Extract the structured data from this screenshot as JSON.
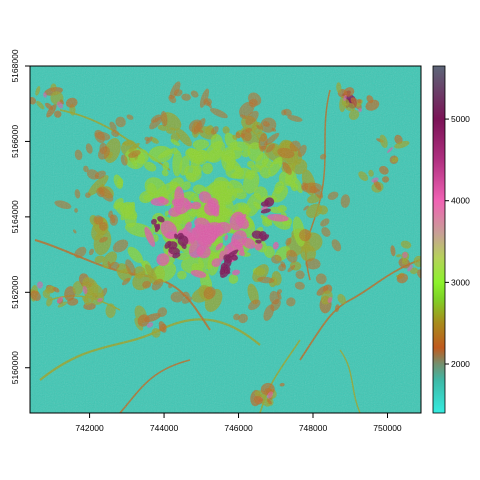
{
  "map": {
    "x_ticks": [
      {
        "value": 742000,
        "label": "742000"
      },
      {
        "value": 744000,
        "label": "744000"
      },
      {
        "value": 746000,
        "label": "746000"
      },
      {
        "value": 748000,
        "label": "748000"
      },
      {
        "value": 750000,
        "label": "750000"
      }
    ],
    "y_ticks": [
      {
        "value": 5160000,
        "label": "5160000"
      },
      {
        "value": 5162000,
        "label": "5162000"
      },
      {
        "value": 5164000,
        "label": "5164000"
      },
      {
        "value": 5166000,
        "label": "5166000"
      },
      {
        "value": 5168000,
        "label": "5168000"
      }
    ],
    "xlim": [
      740400,
      750900
    ],
    "ylim": [
      5158800,
      5168000
    ],
    "colors": {
      "background": "#3ec7b4",
      "ridge": "#8cd42c",
      "slope": "#9aa226",
      "low_brown": "#b96a22",
      "pink": "#dc5aa6",
      "purple": "#7a1356",
      "frame": "#000000"
    }
  },
  "legend": {
    "title": "",
    "range": [
      1400,
      5650
    ],
    "ticks": [
      {
        "value": 2000,
        "label": "2000"
      },
      {
        "value": 3000,
        "label": "3000"
      },
      {
        "value": 4000,
        "label": "4000"
      },
      {
        "value": 5000,
        "label": "5000"
      }
    ],
    "stops": [
      {
        "value": 1400,
        "color": "#35ece0"
      },
      {
        "value": 1800,
        "color": "#3eb8a6"
      },
      {
        "value": 2000,
        "color": "#74906e"
      },
      {
        "value": 2200,
        "color": "#c05a1e"
      },
      {
        "value": 2500,
        "color": "#a88a1c"
      },
      {
        "value": 2800,
        "color": "#7ed226"
      },
      {
        "value": 3000,
        "color": "#8cf22c"
      },
      {
        "value": 3300,
        "color": "#b6d25a"
      },
      {
        "value": 3600,
        "color": "#c8a096"
      },
      {
        "value": 4000,
        "color": "#f062b4"
      },
      {
        "value": 4500,
        "color": "#b03080"
      },
      {
        "value": 5000,
        "color": "#7a1356"
      },
      {
        "value": 5650,
        "color": "#5c6678"
      }
    ]
  }
}
